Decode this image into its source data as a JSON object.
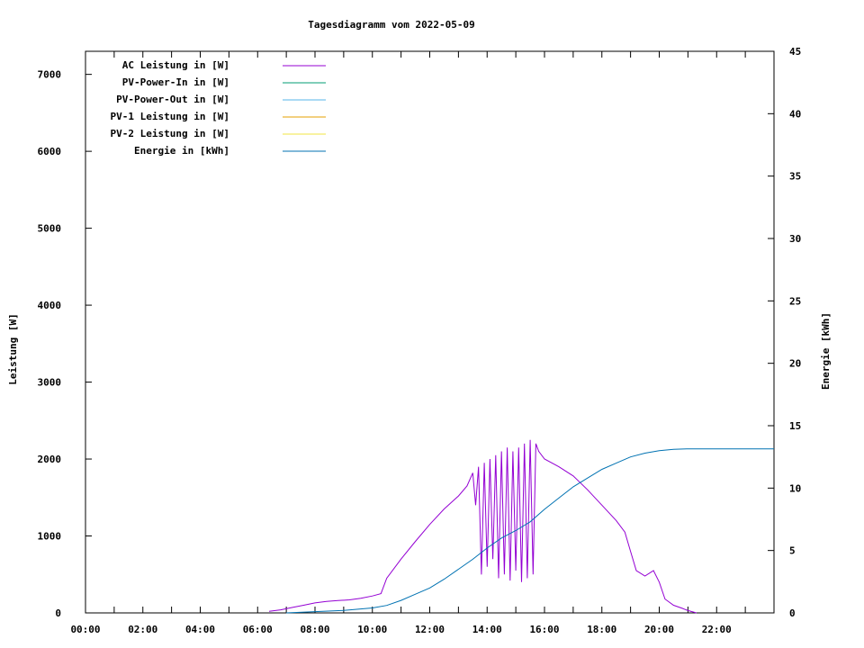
{
  "chart_data": {
    "type": "line",
    "title": "Tagesdiagramm vom 2022-05-09",
    "ylabel": "Leistung [W]",
    "y2label": "Energie [kWh]",
    "xlim": [
      0,
      24
    ],
    "ylim": [
      0,
      7300
    ],
    "y2lim": [
      0,
      45
    ],
    "x_ticks": [
      {
        "v": 0,
        "label": "00:00"
      },
      {
        "v": 2,
        "label": "02:00"
      },
      {
        "v": 4,
        "label": "04:00"
      },
      {
        "v": 6,
        "label": "06:00"
      },
      {
        "v": 8,
        "label": "08:00"
      },
      {
        "v": 10,
        "label": "10:00"
      },
      {
        "v": 12,
        "label": "12:00"
      },
      {
        "v": 14,
        "label": "14:00"
      },
      {
        "v": 16,
        "label": "16:00"
      },
      {
        "v": 18,
        "label": "18:00"
      },
      {
        "v": 20,
        "label": "20:00"
      },
      {
        "v": 22,
        "label": "22:00"
      }
    ],
    "y_ticks": [
      0,
      1000,
      2000,
      3000,
      4000,
      5000,
      6000,
      7000
    ],
    "y2_ticks": [
      0,
      5,
      10,
      15,
      20,
      25,
      30,
      35,
      40,
      45
    ],
    "grid": false,
    "legend_position": "top-left",
    "series": [
      {
        "name": "AC Leistung in [W]",
        "axis": "left",
        "color": "#9400d3",
        "points": [
          [
            6.4,
            20
          ],
          [
            6.8,
            40
          ],
          [
            7.2,
            70
          ],
          [
            7.6,
            100
          ],
          [
            8.0,
            130
          ],
          [
            8.4,
            150
          ],
          [
            8.8,
            160
          ],
          [
            9.2,
            170
          ],
          [
            9.6,
            190
          ],
          [
            10.0,
            220
          ],
          [
            10.3,
            250
          ],
          [
            10.5,
            450
          ],
          [
            11.0,
            700
          ],
          [
            11.5,
            930
          ],
          [
            12.0,
            1150
          ],
          [
            12.5,
            1350
          ],
          [
            13.0,
            1520
          ],
          [
            13.3,
            1650
          ],
          [
            13.5,
            1820
          ],
          [
            13.6,
            1400
          ],
          [
            13.7,
            1900
          ],
          [
            13.8,
            500
          ],
          [
            13.9,
            1950
          ],
          [
            14.0,
            600
          ],
          [
            14.1,
            2000
          ],
          [
            14.2,
            700
          ],
          [
            14.3,
            2050
          ],
          [
            14.4,
            450
          ],
          [
            14.5,
            2100
          ],
          [
            14.6,
            500
          ],
          [
            14.7,
            2150
          ],
          [
            14.8,
            420
          ],
          [
            14.9,
            2100
          ],
          [
            15.0,
            550
          ],
          [
            15.1,
            2150
          ],
          [
            15.2,
            400
          ],
          [
            15.3,
            2200
          ],
          [
            15.4,
            450
          ],
          [
            15.5,
            2250
          ],
          [
            15.6,
            500
          ],
          [
            15.7,
            2200
          ],
          [
            15.8,
            2100
          ],
          [
            16.0,
            2000
          ],
          [
            16.5,
            1900
          ],
          [
            17.0,
            1780
          ],
          [
            17.5,
            1600
          ],
          [
            18.0,
            1400
          ],
          [
            18.5,
            1200
          ],
          [
            18.8,
            1050
          ],
          [
            19.0,
            800
          ],
          [
            19.2,
            550
          ],
          [
            19.5,
            480
          ],
          [
            19.8,
            550
          ],
          [
            20.0,
            400
          ],
          [
            20.2,
            180
          ],
          [
            20.5,
            100
          ],
          [
            20.8,
            60
          ],
          [
            21.0,
            30
          ],
          [
            21.3,
            0
          ]
        ]
      },
      {
        "name": "PV-Power-In in [W]",
        "axis": "left",
        "color": "#009e73",
        "points": []
      },
      {
        "name": "PV-Power-Out in [W]",
        "axis": "left",
        "color": "#56b4e9",
        "points": []
      },
      {
        "name": "PV-1 Leistung in [W]",
        "axis": "left",
        "color": "#e69f00",
        "points": []
      },
      {
        "name": "PV-2 Leistung in [W]",
        "axis": "left",
        "color": "#f0e442",
        "points": []
      },
      {
        "name": "Energie in [kWh]",
        "axis": "right",
        "color": "#0072b2",
        "points": [
          [
            7.0,
            0
          ],
          [
            8.0,
            0.1
          ],
          [
            9.0,
            0.2
          ],
          [
            10.0,
            0.4
          ],
          [
            10.5,
            0.6
          ],
          [
            11.0,
            1.0
          ],
          [
            11.5,
            1.5
          ],
          [
            12.0,
            2.0
          ],
          [
            12.5,
            2.7
          ],
          [
            13.0,
            3.5
          ],
          [
            13.5,
            4.3
          ],
          [
            14.0,
            5.2
          ],
          [
            14.5,
            6.0
          ],
          [
            15.0,
            6.6
          ],
          [
            15.5,
            7.3
          ],
          [
            16.0,
            8.3
          ],
          [
            16.5,
            9.2
          ],
          [
            17.0,
            10.1
          ],
          [
            17.5,
            10.8
          ],
          [
            18.0,
            11.5
          ],
          [
            18.5,
            12.0
          ],
          [
            19.0,
            12.5
          ],
          [
            19.5,
            12.8
          ],
          [
            20.0,
            13.0
          ],
          [
            20.5,
            13.1
          ],
          [
            21.0,
            13.15
          ],
          [
            22.0,
            13.15
          ],
          [
            24.0,
            13.15
          ]
        ]
      }
    ]
  }
}
